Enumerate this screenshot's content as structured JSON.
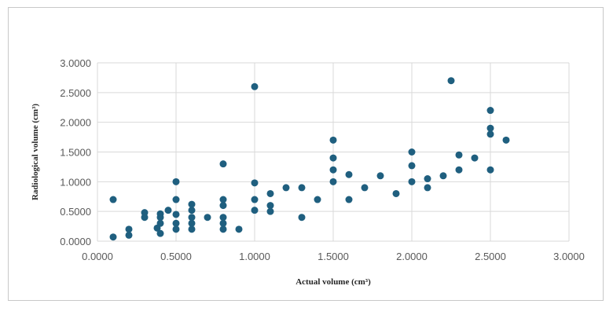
{
  "chart_data": {
    "type": "scatter",
    "title": "",
    "xlabel": "Actual volume (cm³)",
    "ylabel": "Radiological volume (cm³)",
    "xlim": [
      0,
      3
    ],
    "ylim": [
      0,
      3
    ],
    "grid": true,
    "x_ticks": [
      "0.0000",
      "0.5000",
      "1.0000",
      "1.5000",
      "2.0000",
      "2.5000",
      "3.0000"
    ],
    "y_ticks": [
      "0.0000",
      "0.5000",
      "1.0000",
      "1.5000",
      "2.0000",
      "2.5000",
      "3.0000"
    ],
    "point_color": "#1f5f7f",
    "series": [
      {
        "points": [
          [
            0.1,
            0.7
          ],
          [
            0.1,
            0.07
          ],
          [
            0.2,
            0.2
          ],
          [
            0.2,
            0.1
          ],
          [
            0.3,
            0.48
          ],
          [
            0.3,
            0.4
          ],
          [
            0.38,
            0.22
          ],
          [
            0.4,
            0.46
          ],
          [
            0.4,
            0.4
          ],
          [
            0.4,
            0.3
          ],
          [
            0.4,
            0.13
          ],
          [
            0.45,
            0.52
          ],
          [
            0.5,
            1.0
          ],
          [
            0.5,
            0.7
          ],
          [
            0.5,
            0.45
          ],
          [
            0.5,
            0.3
          ],
          [
            0.5,
            0.2
          ],
          [
            0.6,
            0.62
          ],
          [
            0.6,
            0.52
          ],
          [
            0.6,
            0.4
          ],
          [
            0.6,
            0.3
          ],
          [
            0.6,
            0.2
          ],
          [
            0.7,
            0.4
          ],
          [
            0.8,
            1.3
          ],
          [
            0.8,
            0.7
          ],
          [
            0.8,
            0.6
          ],
          [
            0.8,
            0.4
          ],
          [
            0.8,
            0.3
          ],
          [
            0.8,
            0.2
          ],
          [
            0.9,
            0.2
          ],
          [
            1.0,
            2.6
          ],
          [
            1.0,
            0.98
          ],
          [
            1.0,
            0.7
          ],
          [
            1.0,
            0.52
          ],
          [
            1.1,
            0.8
          ],
          [
            1.1,
            0.6
          ],
          [
            1.1,
            0.5
          ],
          [
            1.2,
            0.9
          ],
          [
            1.3,
            0.9
          ],
          [
            1.3,
            0.4
          ],
          [
            1.4,
            0.7
          ],
          [
            1.5,
            1.7
          ],
          [
            1.5,
            1.4
          ],
          [
            1.5,
            1.2
          ],
          [
            1.5,
            1.0
          ],
          [
            1.6,
            1.12
          ],
          [
            1.6,
            0.7
          ],
          [
            1.7,
            0.9
          ],
          [
            1.8,
            1.1
          ],
          [
            1.9,
            0.8
          ],
          [
            2.0,
            1.5
          ],
          [
            2.0,
            1.27
          ],
          [
            2.0,
            1.0
          ],
          [
            2.1,
            1.05
          ],
          [
            2.1,
            0.9
          ],
          [
            2.2,
            1.1
          ],
          [
            2.25,
            2.7
          ],
          [
            2.3,
            1.45
          ],
          [
            2.3,
            1.2
          ],
          [
            2.4,
            1.4
          ],
          [
            2.5,
            2.2
          ],
          [
            2.5,
            1.9
          ],
          [
            2.5,
            1.8
          ],
          [
            2.5,
            1.2
          ],
          [
            2.6,
            1.7
          ]
        ]
      }
    ]
  }
}
